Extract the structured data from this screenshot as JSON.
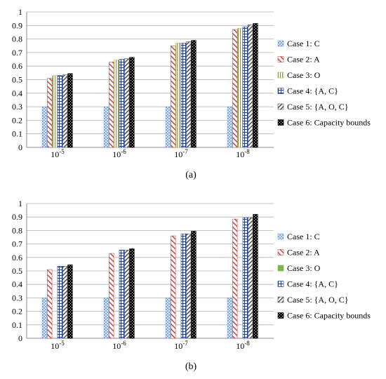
{
  "chart_data": [
    {
      "type": "bar",
      "caption": "(a)",
      "categories": [
        {
          "base": "10",
          "exp": "-5"
        },
        {
          "base": "10",
          "exp": "-6"
        },
        {
          "base": "10",
          "exp": "-7"
        },
        {
          "base": "10",
          "exp": "-8"
        }
      ],
      "ylim": [
        0,
        1
      ],
      "yticks": [
        "0",
        "0.1",
        "0.2",
        "0.3",
        "0.4",
        "0.5",
        "0.6",
        "0.7",
        "0.8",
        "0.9",
        "1"
      ],
      "grid": true,
      "legend_position": "right",
      "series": [
        {
          "name": "Case 1: C",
          "pattern": "dots-blue",
          "color": "#7fa6d8",
          "values": [
            0.3,
            0.3,
            0.3,
            0.3
          ]
        },
        {
          "name": "Case 2: A",
          "pattern": "diag-red",
          "color": "#c0504d",
          "values": [
            0.51,
            0.63,
            0.75,
            0.87
          ]
        },
        {
          "name": "Case 3: O",
          "pattern": "vlines-olive",
          "color": "#9bbb59",
          "values": [
            0.53,
            0.645,
            0.77,
            0.88
          ]
        },
        {
          "name": "Case 4: {A, C}",
          "pattern": "grid-blue",
          "color": "#1f3c88",
          "values": [
            0.53,
            0.65,
            0.77,
            0.89
          ]
        },
        {
          "name": "Case 5: {A, O, C}",
          "pattern": "diag-gray",
          "color": "#555555",
          "values": [
            0.535,
            0.655,
            0.78,
            0.905
          ]
        },
        {
          "name": "Case 6: Capacity bounds",
          "pattern": "checker-black",
          "color": "#000000",
          "values": [
            0.545,
            0.665,
            0.79,
            0.915
          ]
        }
      ]
    },
    {
      "type": "bar",
      "caption": "(b)",
      "categories": [
        {
          "base": "10",
          "exp": "-5"
        },
        {
          "base": "10",
          "exp": "-6"
        },
        {
          "base": "10",
          "exp": "-7"
        },
        {
          "base": "10",
          "exp": "-8"
        }
      ],
      "ylim": [
        0,
        1
      ],
      "yticks": [
        "0",
        "0.1",
        "0.2",
        "0.3",
        "0.4",
        "0.5",
        "0.6",
        "0.7",
        "0.8",
        "0.9",
        "1"
      ],
      "grid": true,
      "legend_position": "right",
      "series": [
        {
          "name": "Case 1: C",
          "pattern": "dots-blue",
          "color": "#7fa6d8",
          "values": [
            0.3,
            0.3,
            0.3,
            0.3
          ]
        },
        {
          "name": "Case 2: A",
          "pattern": "diag-red",
          "color": "#c0504d",
          "values": [
            0.51,
            0.63,
            0.76,
            0.885
          ]
        },
        {
          "name": "Case 3: O",
          "pattern": "solid-green",
          "color": "#7ab648",
          "values": [
            0,
            0,
            0,
            0
          ]
        },
        {
          "name": "Case 4: {A, C}",
          "pattern": "grid-blue",
          "color": "#1f3c88",
          "values": [
            0.535,
            0.655,
            0.775,
            0.895
          ]
        },
        {
          "name": "Case 5: {A, O, C}",
          "pattern": "diag-gray",
          "color": "#555555",
          "values": [
            0.535,
            0.655,
            0.775,
            0.895
          ]
        },
        {
          "name": "Case 6: Capacity bounds",
          "pattern": "checker-black",
          "color": "#000000",
          "values": [
            0.545,
            0.665,
            0.795,
            0.92
          ]
        }
      ]
    }
  ]
}
